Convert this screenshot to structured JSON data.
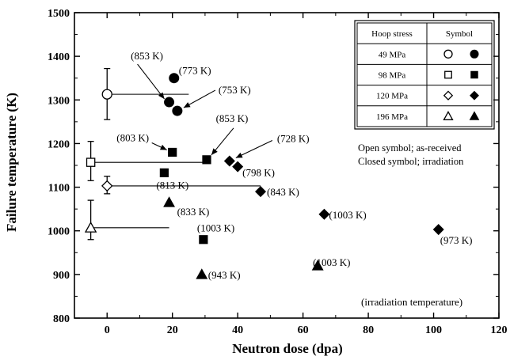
{
  "chart_data": {
    "type": "scatter",
    "xlabel": "Neutron dose (dpa)",
    "ylabel": "Failure temperature (K)",
    "xlim": [
      -10,
      120
    ],
    "ylim": [
      800,
      1500
    ],
    "xticks": [
      0,
      20,
      40,
      60,
      80,
      100,
      120
    ],
    "yticks": [
      800,
      900,
      1000,
      1100,
      1200,
      1300,
      1400,
      1500
    ],
    "grid": false,
    "legend": {
      "placement": "top-right",
      "header": [
        "Hoop stress",
        "Symbol"
      ],
      "rows": [
        {
          "stress": "49 MPa",
          "shape": "circle"
        },
        {
          "stress": "98 MPa",
          "shape": "square"
        },
        {
          "stress": "120 MPa",
          "shape": "diamond"
        },
        {
          "stress": "196 MPa",
          "shape": "triangle"
        }
      ]
    },
    "notes": [
      "Open symbol; as-received",
      "Closed symbol; irradiation"
    ],
    "footnote": "(irradiation temperature)",
    "as_received": [
      {
        "shape": "circle",
        "x": 0,
        "y": 1313,
        "err": [
          1255,
          1372
        ],
        "hline_to": 25
      },
      {
        "shape": "square",
        "x": -5,
        "y": 1157,
        "err": [
          1115,
          1205
        ],
        "hline_to": 31
      },
      {
        "shape": "diamond",
        "x": 0,
        "y": 1103,
        "err": [
          1085,
          1125
        ],
        "hline_to": 47
      },
      {
        "shape": "triangle",
        "x": -5,
        "y": 1007,
        "err": [
          980,
          1070
        ],
        "hline_to": 19
      }
    ],
    "irradiated": [
      {
        "shape": "circle",
        "x": 20.5,
        "y": 1350,
        "label": "(773 K)"
      },
      {
        "shape": "circle",
        "x": 19,
        "y": 1295,
        "label": "(853 K)"
      },
      {
        "shape": "circle",
        "x": 21.5,
        "y": 1275,
        "label": "(753 K)"
      },
      {
        "shape": "square",
        "x": 20,
        "y": 1180,
        "label": "(803 K)"
      },
      {
        "shape": "square",
        "x": 30.5,
        "y": 1163,
        "label": "(853 K)"
      },
      {
        "shape": "square",
        "x": 17.5,
        "y": 1133,
        "label": "(813 K)"
      },
      {
        "shape": "square",
        "x": 29.5,
        "y": 980,
        "label": "(1003 K)"
      },
      {
        "shape": "diamond",
        "x": 37.5,
        "y": 1160,
        "label": "(728 K)"
      },
      {
        "shape": "diamond",
        "x": 40,
        "y": 1147,
        "label": "(798 K)"
      },
      {
        "shape": "diamond",
        "x": 47,
        "y": 1090,
        "label": "(843 K)"
      },
      {
        "shape": "diamond",
        "x": 66.5,
        "y": 1038,
        "label": "(1003 K)"
      },
      {
        "shape": "diamond",
        "x": 101.5,
        "y": 1003,
        "label": "(973 K)"
      },
      {
        "shape": "triangle",
        "x": 19,
        "y": 1065,
        "label": "(833 K)"
      },
      {
        "shape": "triangle",
        "x": 29,
        "y": 900,
        "label": "(943 K)"
      },
      {
        "shape": "triangle",
        "x": 64.5,
        "y": 920,
        "label": "(1003 K)"
      }
    ]
  }
}
